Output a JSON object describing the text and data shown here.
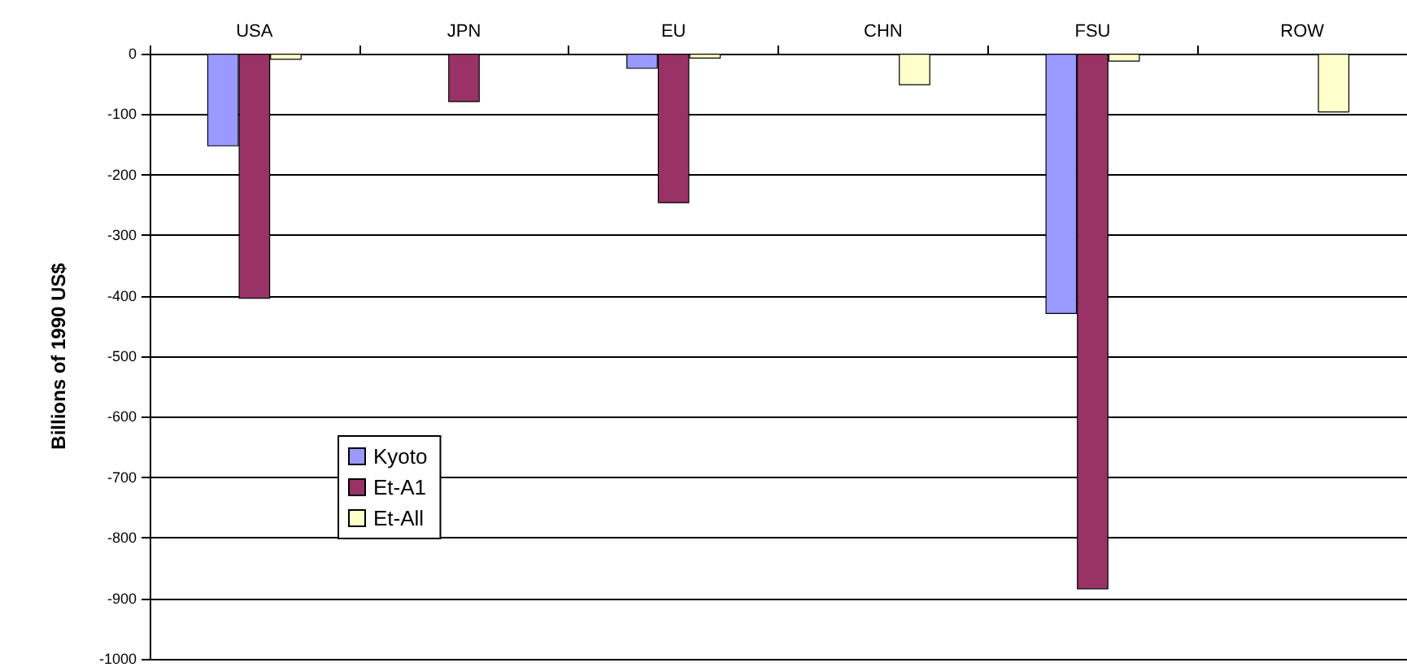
{
  "chart_data": {
    "type": "bar",
    "ylabel": "Billions of 1990 US$",
    "categories": [
      "USA",
      "JPN",
      "EU",
      "CHN",
      "FSU",
      "ROW"
    ],
    "series": [
      {
        "name": "Kyoto",
        "color": "#9999ff",
        "values": [
          -153,
          null,
          -25,
          null,
          -430,
          null
        ]
      },
      {
        "name": "Et-A1",
        "color": "#993366",
        "values": [
          -405,
          -80,
          -247,
          null,
          -885,
          null
        ]
      },
      {
        "name": "Et-All",
        "color": "#ffffcc",
        "values": [
          -10,
          null,
          -8,
          -52,
          -13,
          -97
        ]
      }
    ],
    "ylim": [
      -1000,
      0
    ],
    "yticks": [
      -1000,
      -900,
      -800,
      -700,
      -600,
      -500,
      -400,
      -300,
      -200,
      -100,
      0
    ],
    "grid": "y",
    "legend": "left"
  }
}
